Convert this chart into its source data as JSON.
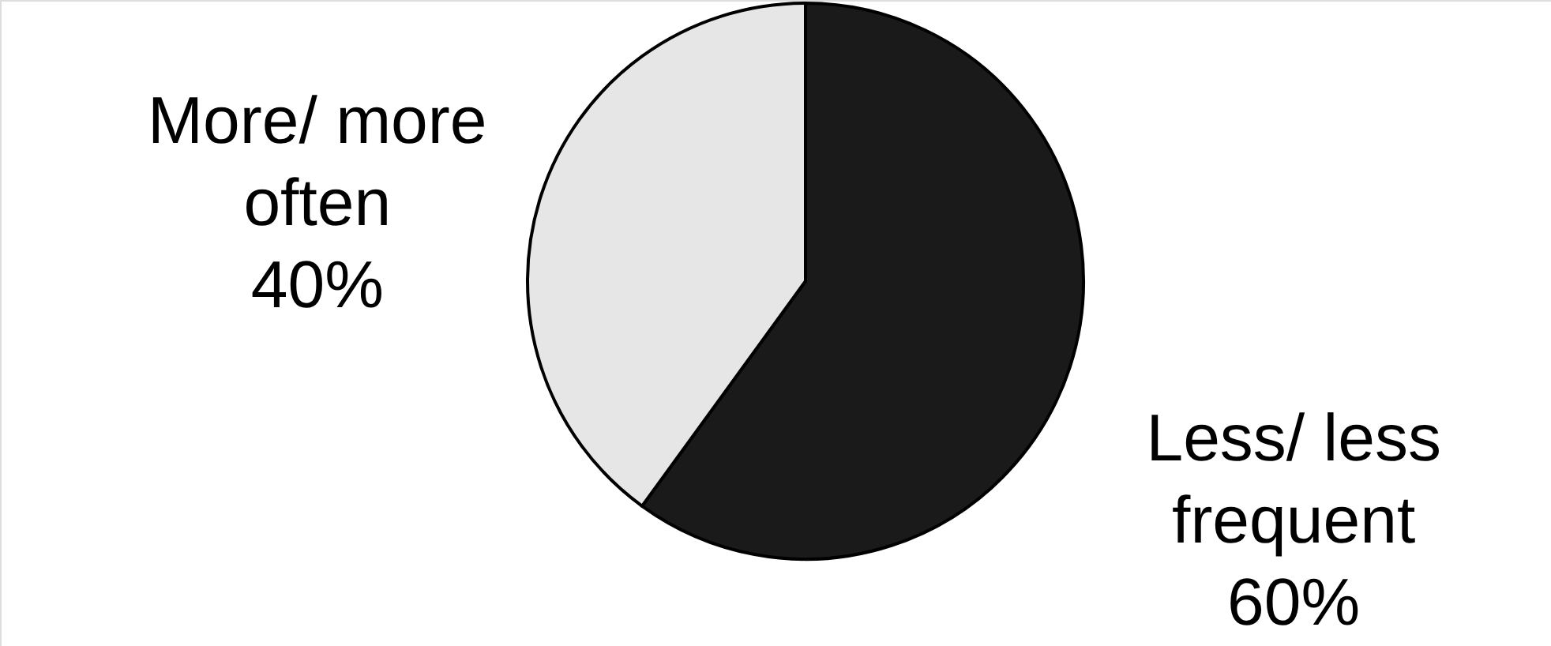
{
  "chart_data": {
    "type": "pie",
    "categories": [
      "Less/ less frequent",
      "More/ more often"
    ],
    "values": [
      60,
      40
    ],
    "value_labels": [
      "60%",
      "40%"
    ],
    "colors": [
      "#1a1a1a",
      "#e6e6e6"
    ]
  }
}
